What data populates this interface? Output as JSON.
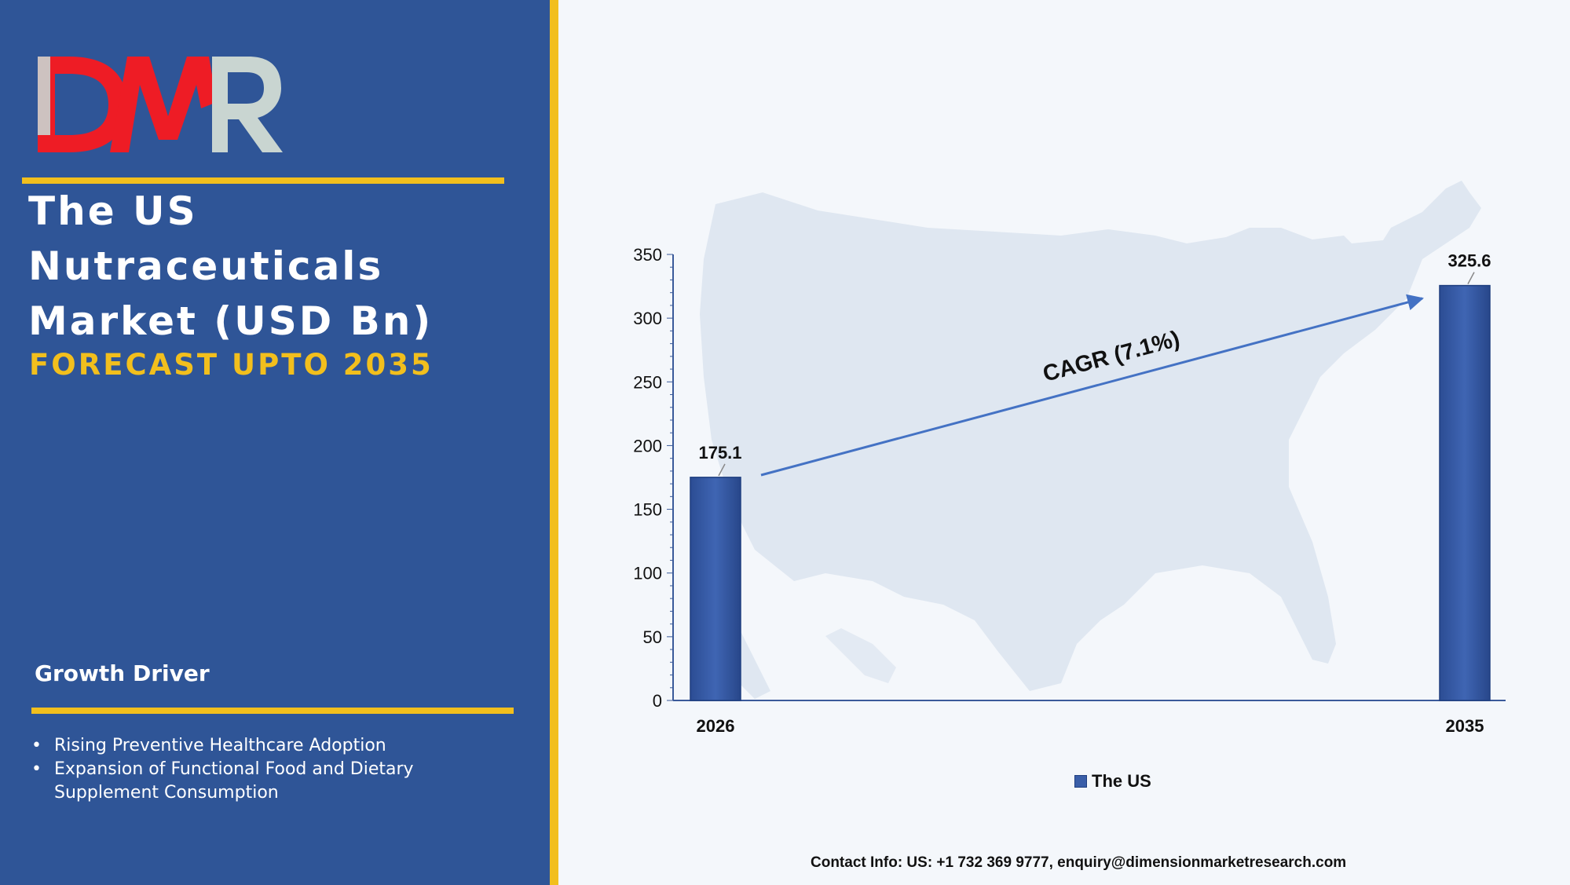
{
  "brand": {
    "logo_text": "DMR",
    "colors": {
      "red": "#ee1c25",
      "grey": "#c9d5d1",
      "panel": "#2f5597",
      "accent": "#f2bf1d"
    }
  },
  "header": {
    "title_lines": [
      "The US",
      "Nutraceuticals",
      "Market (USD Bn)"
    ],
    "subtitle": "FORECAST UPTO 2035"
  },
  "growth": {
    "heading": "Growth Driver",
    "items": [
      "Rising Preventive Healthcare Adoption",
      "Expansion of Functional Food and Dietary Supplement Consumption"
    ]
  },
  "chart_data": {
    "type": "bar",
    "categories": [
      "2026",
      "2035"
    ],
    "series": [
      {
        "name": "The US",
        "values": [
          175.1,
          325.6
        ],
        "color": "#3a5ea8"
      }
    ],
    "data_labels": [
      "175.1",
      "325.6"
    ],
    "ylim": [
      0,
      350
    ],
    "y_ticks": [
      0,
      50,
      100,
      150,
      200,
      250,
      300,
      350
    ],
    "annotation": "CAGR (7.1%)",
    "background_icon": "us-map-silhouette",
    "grid": false,
    "legend_position": "bottom"
  },
  "footer": {
    "contact": "Contact Info: US: +1 732 369 9777, enquiry@dimensionmarketresearch.com"
  }
}
